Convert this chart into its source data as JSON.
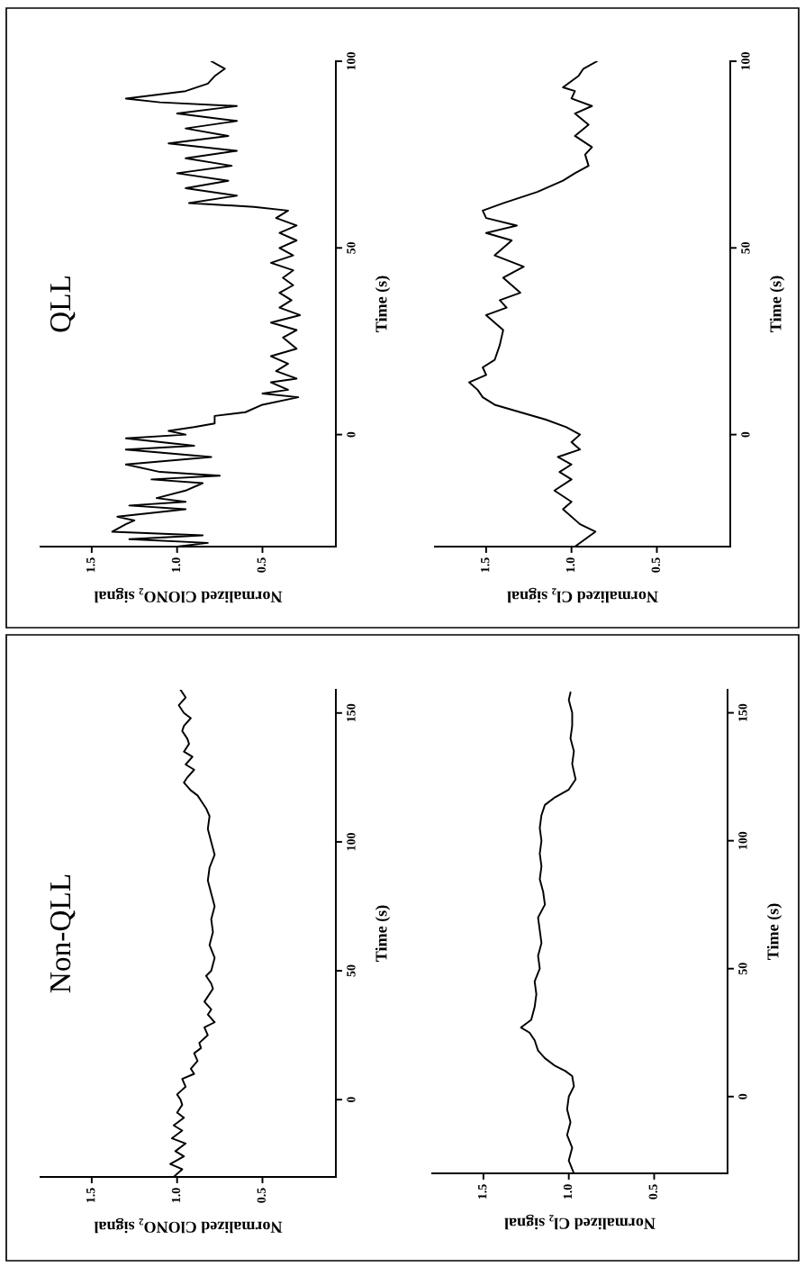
{
  "chart_data": [
    {
      "type": "line",
      "title": "Non-QLL",
      "ylabel": "Time (s)",
      "xlabel": "Normalized ClONO₂ signal",
      "series": [
        {
          "color": "#000000",
          "x": [
            1.02,
            0.97,
            1.04,
            0.96,
            1.01,
            0.95,
            1.03,
            0.97,
            1.02,
            0.96,
            1.0,
            0.97,
            0.98,
            1.0,
            0.95,
            0.97,
            0.9,
            0.92,
            0.88,
            0.9,
            0.86,
            0.87,
            0.82,
            0.84,
            0.78,
            0.82,
            0.8,
            0.84,
            0.82,
            0.79,
            0.8,
            0.83,
            0.8,
            0.78,
            0.81,
            0.79,
            0.8,
            0.78,
            0.8,
            0.82,
            0.81,
            0.78,
            0.8,
            0.82,
            0.81,
            0.83,
            0.85,
            0.88,
            0.92,
            0.96,
            0.94,
            0.9,
            0.95,
            0.91,
            0.96,
            0.93,
            0.94,
            0.97,
            0.96,
            0.92,
            0.96,
            0.99,
            0.95,
            0.98
          ],
          "values": [
            -30,
            -27,
            -25,
            -22,
            -20,
            -17,
            -15,
            -12,
            -10,
            -7,
            -5,
            -2,
            0,
            2,
            5,
            8,
            10,
            12,
            15,
            18,
            20,
            22,
            25,
            28,
            30,
            33,
            35,
            38,
            40,
            43,
            45,
            48,
            50,
            55,
            60,
            65,
            70,
            75,
            80,
            85,
            90,
            95,
            100,
            105,
            110,
            113,
            115,
            118,
            120,
            123,
            125,
            128,
            130,
            133,
            135,
            138,
            140,
            143,
            145,
            148,
            150,
            153,
            156,
            159
          ]
        }
      ],
      "ylim": [
        -30,
        159
      ],
      "yticks": [
        0,
        50,
        100,
        150
      ],
      "xlim": [
        1.8,
        0.07
      ],
      "xticks": [
        {
          "value": 1.5,
          "label": "1.5"
        },
        {
          "value": 1.0,
          "label": "1.0"
        },
        {
          "value": 0.5,
          "label": "0.5"
        }
      ]
    },
    {
      "type": "line",
      "title": "QLL",
      "ylabel": "Time (s)",
      "xlabel": "Normalized ClONO₂ signal",
      "series": [
        {
          "color": "#000000",
          "x": [
            1.0,
            0.82,
            1.28,
            0.85,
            1.38,
            1.3,
            1.25,
            1.35,
            0.95,
            1.28,
            0.95,
            1.12,
            0.95,
            0.85,
            1.15,
            0.75,
            1.1,
            1.3,
            0.8,
            1.3,
            0.9,
            1.3,
            0.95,
            1.05,
            0.9,
            0.78,
            0.78,
            0.6,
            0.5,
            0.29,
            0.5,
            0.35,
            0.45,
            0.3,
            0.42,
            0.35,
            0.45,
            0.3,
            0.38,
            0.3,
            0.45,
            0.28,
            0.4,
            0.33,
            0.4,
            0.32,
            0.38,
            0.32,
            0.45,
            0.32,
            0.4,
            0.3,
            0.4,
            0.3,
            0.42,
            0.35,
            0.55,
            0.93,
            0.65,
            0.95,
            0.7,
            1.0,
            0.68,
            0.95,
            0.65,
            1.05,
            0.7,
            0.95,
            0.65,
            1.0,
            0.65,
            1.1,
            1.3,
            0.95,
            0.82,
            0.78,
            0.72,
            0.8
          ],
          "values": [
            -30,
            -29,
            -28,
            -27,
            -26,
            -24,
            -23,
            -22,
            -20,
            -19,
            -18,
            -17,
            -15,
            -13,
            -12,
            -11,
            -10,
            -8,
            -6,
            -4,
            -3,
            -1,
            0,
            1,
            2,
            3,
            5,
            6,
            8,
            10,
            11,
            12,
            14,
            15,
            17,
            19,
            21,
            23,
            26,
            28,
            30,
            32,
            34,
            36,
            38,
            40,
            42,
            44,
            46,
            48,
            50,
            52,
            54,
            56,
            58,
            60,
            61,
            62,
            64,
            66,
            68,
            70,
            72,
            74,
            76,
            78,
            80,
            82,
            84,
            86,
            88,
            89,
            90,
            92,
            94,
            96,
            98,
            100
          ]
        }
      ],
      "ylim": [
        -30,
        100
      ],
      "yticks": [
        0,
        50,
        100
      ],
      "xlim": [
        1.8,
        0.07
      ],
      "xticks": [
        {
          "value": 1.5,
          "label": "1.5"
        },
        {
          "value": 1.0,
          "label": "1.0"
        },
        {
          "value": 0.5,
          "label": "0.5"
        }
      ]
    },
    {
      "type": "line",
      "ylabel": "Time (s)",
      "xlabel": "Normalized Cl₂ signal",
      "series": [
        {
          "color": "#000000",
          "x": [
            0.97,
            1.0,
            0.98,
            1.01,
            0.99,
            1.01,
            1.0,
            0.97,
            0.98,
            1.02,
            1.08,
            1.14,
            1.18,
            1.19,
            1.2,
            1.23,
            1.28,
            1.22,
            1.2,
            1.19,
            1.2,
            1.17,
            1.18,
            1.16,
            1.17,
            1.18,
            1.14,
            1.15,
            1.17,
            1.16,
            1.17,
            1.16,
            1.17,
            1.16,
            1.14,
            1.08,
            1.0,
            0.96,
            0.97,
            0.98,
            0.97,
            0.99,
            0.98,
            0.98,
            1.0,
            0.99
          ],
          "values": [
            -30,
            -25,
            -20,
            -15,
            -10,
            -5,
            0,
            4,
            8,
            10,
            12,
            15,
            18,
            20,
            22,
            25,
            27,
            30,
            35,
            40,
            45,
            50,
            55,
            60,
            65,
            70,
            75,
            80,
            85,
            90,
            95,
            100,
            105,
            110,
            114,
            117,
            120,
            124,
            127,
            130,
            135,
            140,
            145,
            150,
            155,
            158
          ]
        }
      ],
      "ylim": [
        -30,
        159
      ],
      "yticks": [
        0,
        50,
        100,
        150
      ],
      "xlim": [
        1.8,
        0.07
      ],
      "xticks": [
        {
          "value": 1.5,
          "label": "1.5"
        },
        {
          "value": 1.0,
          "label": "1.0"
        },
        {
          "value": 0.5,
          "label": "0.5"
        }
      ]
    },
    {
      "type": "line",
      "ylabel": "Time (s)",
      "xlabel": "Normalized Cl₂ signal",
      "series": [
        {
          "color": "#000000",
          "x": [
            0.98,
            0.92,
            0.86,
            0.95,
            1.05,
            1.0,
            1.1,
            1.0,
            1.07,
            1.0,
            1.08,
            0.95,
            1.0,
            0.95,
            1.03,
            1.15,
            1.3,
            1.45,
            1.52,
            1.55,
            1.6,
            1.5,
            1.52,
            1.45,
            1.42,
            1.4,
            1.5,
            1.38,
            1.42,
            1.3,
            1.4,
            1.28,
            1.45,
            1.35,
            1.5,
            1.32,
            1.5,
            1.52,
            1.4,
            1.2,
            1.05,
            0.98,
            0.9,
            0.92,
            0.88,
            0.98,
            0.9,
            0.98,
            0.88,
            1.0,
            0.98,
            1.05,
            0.96,
            0.93,
            0.85
          ],
          "values": [
            -30,
            -28,
            -26,
            -24,
            -20,
            -18,
            -15,
            -12,
            -10,
            -8,
            -6,
            -4,
            -2,
            0,
            2,
            4,
            6,
            8,
            10,
            12,
            14,
            16,
            18,
            20,
            24,
            28,
            32,
            34,
            36,
            38,
            42,
            45,
            48,
            52,
            54,
            56,
            58,
            60,
            62,
            65,
            68,
            70,
            72,
            75,
            77,
            80,
            83,
            86,
            88,
            90,
            92,
            93,
            96,
            98,
            100
          ]
        }
      ],
      "ylim": [
        -30,
        100
      ],
      "yticks": [
        0,
        50,
        100
      ],
      "xlim": [
        1.8,
        0.07
      ],
      "xticks": [
        {
          "value": 1.5,
          "label": "1.5"
        },
        {
          "value": 1.0,
          "label": "1.0"
        },
        {
          "value": 0.5,
          "label": "0.5"
        }
      ]
    }
  ]
}
